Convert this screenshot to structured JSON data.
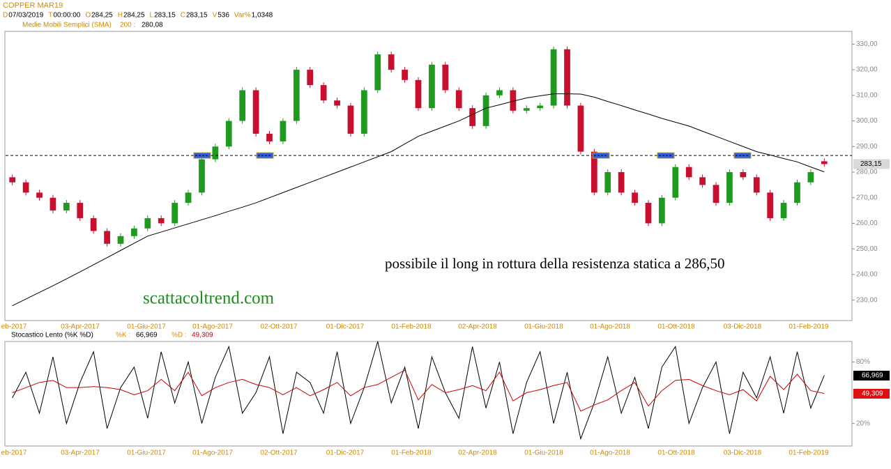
{
  "header": {
    "symbol": "COPPER MAR19",
    "info": [
      [
        "D",
        "07/03/2019"
      ],
      [
        "T",
        "00:00:00"
      ],
      [
        "O",
        "284,25"
      ],
      [
        "H",
        "284,25"
      ],
      [
        "L",
        "283,15"
      ],
      [
        "C",
        "283,15"
      ],
      [
        "V",
        "536"
      ],
      [
        "Var%",
        "1,0348"
      ]
    ]
  },
  "chart_data": [
    {
      "type": "candlestick",
      "categories": [
        "eb-2017",
        "03-Apr-2017",
        "01-Giu-2017",
        "01-Ago-2017",
        "02-Ott-2017",
        "01-Dic-2017",
        "01-Feb-2018",
        "02-Apr-2018",
        "01-Giu-2018",
        "01-Ago-2018",
        "01-Ott-2018",
        "03-Dic-2018",
        "01-Feb-2019"
      ],
      "open": [
        278,
        276,
        272,
        270,
        265,
        268,
        262,
        257,
        252,
        255,
        258,
        262,
        260,
        268,
        272,
        285,
        290,
        300,
        312,
        295,
        292,
        300,
        320,
        314,
        308,
        306,
        295,
        312,
        326,
        320,
        316,
        305,
        322,
        312,
        305,
        298,
        310,
        312,
        304,
        305,
        306,
        328,
        306,
        288,
        272,
        280,
        272,
        268,
        260,
        270,
        282,
        278,
        275,
        268,
        280,
        278,
        272,
        262,
        268,
        276,
        284.25
      ],
      "close": [
        276,
        272,
        270,
        265,
        268,
        262,
        257,
        252,
        255,
        258,
        262,
        260,
        268,
        272,
        285,
        290,
        300,
        312,
        295,
        292,
        300,
        320,
        314,
        308,
        306,
        295,
        312,
        326,
        320,
        316,
        305,
        322,
        312,
        305,
        298,
        310,
        312,
        304,
        305,
        306,
        328,
        306,
        288,
        272,
        280,
        272,
        268,
        260,
        270,
        282,
        278,
        275,
        268,
        280,
        278,
        272,
        262,
        268,
        276,
        280,
        283.15
      ],
      "last_label": "283,15",
      "up_color": "#1f9a1f",
      "down_color": "#c8102e",
      "sma": {
        "name": "Medie Mobili Semplici (SMA)",
        "period": "200 :",
        "last_label": "280,08",
        "color": "#000000",
        "values": [
          227.8,
          230.4,
          233,
          235.6,
          238.3,
          241,
          243.8,
          246.6,
          249.4,
          252.2,
          255,
          256.6,
          258.2,
          259.8,
          261.4,
          263,
          264.7,
          266.3,
          268,
          270,
          272,
          274,
          276,
          278,
          280,
          282,
          284,
          286,
          288,
          291,
          294,
          296,
          298,
          300,
          302.5,
          305,
          306.3,
          307.7,
          309,
          309.8,
          310.6,
          310.6,
          310.5,
          309.3,
          307.6,
          306,
          304.3,
          302.7,
          301,
          299.5,
          298,
          296,
          294,
          292,
          290,
          288,
          286.7,
          285.3,
          284,
          282,
          280.1
        ]
      },
      "resistance": {
        "value": 286.5,
        "marker_color": "#2f5fe0"
      },
      "annotations": [
        "possibile il long in rottura della resistenza statica a 286,50",
        "scattacoltrend.com"
      ],
      "ylim": [
        222,
        335
      ],
      "yticks": [
        {
          "value": 230,
          "label": "230,00"
        },
        {
          "value": 240,
          "label": "240,00"
        },
        {
          "value": 250,
          "label": "250,00"
        },
        {
          "value": 260,
          "label": "260,00"
        },
        {
          "value": 270,
          "label": "270,00"
        },
        {
          "value": 280,
          "label": "280,00"
        },
        {
          "value": 290,
          "label": "290,00"
        },
        {
          "value": 300,
          "label": "300,00"
        },
        {
          "value": 310,
          "label": "310,00"
        },
        {
          "value": 320,
          "label": "320,00"
        },
        {
          "value": 330,
          "label": "330,00"
        }
      ]
    },
    {
      "type": "line",
      "title": "Stocastico Lento (%K %D)",
      "series": [
        {
          "name": "%K :",
          "color": "#000000",
          "last_label": "66,969",
          "values": [
            45,
            70,
            30,
            85,
            20,
            60,
            90,
            15,
            55,
            75,
            25,
            90,
            40,
            80,
            20,
            65,
            95,
            30,
            50,
            85,
            10,
            70,
            60,
            30,
            90,
            20,
            55,
            100,
            40,
            75,
            15,
            85,
            50,
            25,
            95,
            35,
            80,
            10,
            60,
            90,
            20,
            70,
            5,
            40,
            85,
            30,
            65,
            15,
            75,
            95,
            20,
            55,
            80,
            10,
            70,
            45,
            85,
            30,
            90,
            35,
            66.969
          ]
        },
        {
          "name": "%D :",
          "color": "#cc0000",
          "last_label": "49,309",
          "values": [
            50,
            55,
            60,
            62,
            55,
            55,
            56,
            55,
            53,
            48,
            52,
            63,
            52,
            70,
            47,
            55,
            60,
            63,
            58,
            55,
            48,
            55,
            47,
            53,
            60,
            47,
            55,
            58,
            65,
            72,
            43,
            58,
            50,
            53,
            57,
            52,
            70,
            42,
            50,
            53,
            57,
            60,
            32,
            38,
            43,
            52,
            60,
            37,
            52,
            62,
            63,
            57,
            52,
            48,
            53,
            42,
            66,
            53,
            68,
            52,
            49.309
          ]
        }
      ],
      "ylim": [
        -2,
        100
      ],
      "yticks": [
        {
          "value": 80,
          "label": "80%"
        },
        {
          "value": 20,
          "label": "20%"
        }
      ]
    }
  ]
}
